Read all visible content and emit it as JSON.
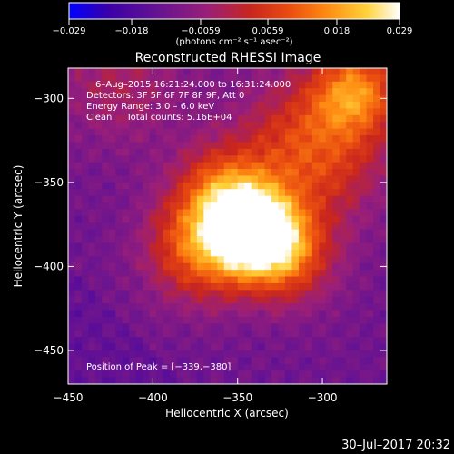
{
  "chart_data": {
    "type": "heatmap",
    "title": "Reconstructed RHESSI Image",
    "xlabel": "Heliocentric X (arcsec)",
    "ylabel": "Heliocentric Y (arcsec)",
    "xlim": [
      -450,
      -262
    ],
    "ylim": [
      -470,
      -282
    ],
    "x_ticks": [
      -450,
      -400,
      -350,
      -300
    ],
    "y_ticks": [
      -450,
      -400,
      -350,
      -300
    ],
    "x_tick_labels": [
      "−450",
      "−400",
      "−350",
      "−300"
    ],
    "y_tick_labels": [
      "−450",
      "−400",
      "−350",
      "−300"
    ],
    "colorbar": {
      "range": [
        -0.029,
        0.029
      ],
      "ticks": [
        -0.029,
        -0.018,
        -0.0059,
        0.0059,
        0.018,
        0.029
      ],
      "tick_labels": [
        "−0.029",
        "−0.018",
        "−0.0059",
        "0.0059",
        "0.018",
        "0.029"
      ],
      "unit_label": "(photons cm⁻² s⁻¹ asec⁻²)",
      "colors": [
        "#0000ff",
        "#3a00a8",
        "#6a1490",
        "#9a1f78",
        "#c8261e",
        "#e84a10",
        "#ff8a12",
        "#ffd23a",
        "#ffffff"
      ]
    },
    "annotations": [
      "6–Aug–2015 16:21:24.000 to 16:31:24.000",
      "Detectors: 3F 5F 6F 7F 8F 9F, Att 0",
      "Energy Range: 3.0 – 6.0 keV",
      "Clean     Total counts: 5.16E+04"
    ],
    "peak_text": "Position of Peak = [−339,−380]",
    "peak": [
      -339,
      -380
    ],
    "peak_value": 0.029,
    "sources": [
      {
        "x": -339,
        "y": -380,
        "amp": 1.0,
        "sigma": 17
      },
      {
        "x": -358,
        "y": -358,
        "amp": 0.55,
        "sigma": 20
      },
      {
        "x": -372,
        "y": -390,
        "amp": 0.55,
        "sigma": 22
      },
      {
        "x": -320,
        "y": -395,
        "amp": 0.45,
        "sigma": 20
      },
      {
        "x": -305,
        "y": -330,
        "amp": 0.5,
        "sigma": 30
      },
      {
        "x": -280,
        "y": -295,
        "amp": 0.55,
        "sigma": 18
      },
      {
        "x": -420,
        "y": -290,
        "amp": 0.22,
        "sigma": 28
      }
    ],
    "footer": "30–Jul–2017 20:32"
  }
}
